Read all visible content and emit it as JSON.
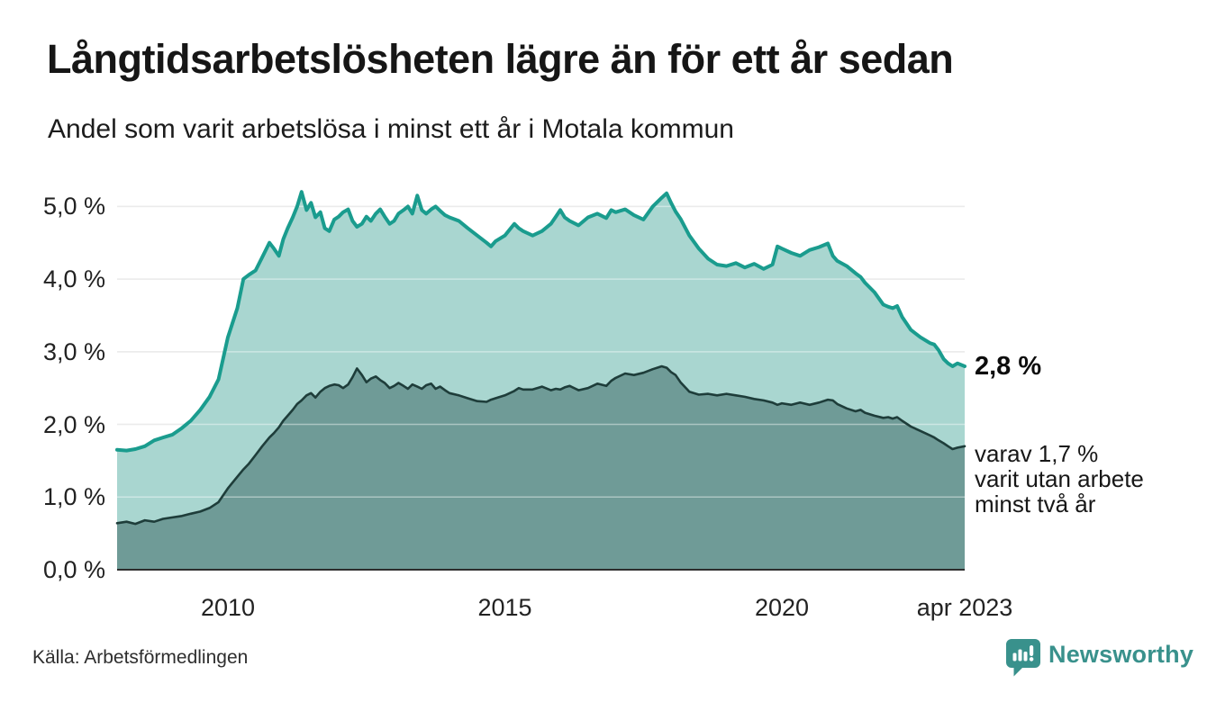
{
  "header": {
    "title": "Långtidsarbetslösheten lägre än för ett år sedan",
    "subtitle": "Andel som varit arbetslösa i minst ett år i Motala kommun"
  },
  "annotations": {
    "end_value_total": "2,8 %",
    "end_note_two_year": "varav 1,7 %\nvarit utan arbete\nminst två år"
  },
  "footer": {
    "source": "Källa: Arbetsförmedlingen",
    "brand": {
      "name": "Newsworthy",
      "icon": "bar-chart-speech-bubble-icon",
      "color": "#39918C"
    }
  },
  "chart_data": {
    "type": "area",
    "title": "Långtidsarbetslösheten lägre än för ett år sedan",
    "subtitle": "Andel som varit arbetslösa i minst ett år i Motala kommun",
    "xlabel": "",
    "ylabel": "",
    "unit": "%",
    "grid": "horizontal",
    "legend_position": "none",
    "xlim": [
      2008.0,
      2023.3
    ],
    "ylim": [
      0,
      5.24
    ],
    "yticks": [
      {
        "value": 0,
        "label": "0,0 %"
      },
      {
        "value": 1,
        "label": "1,0 %"
      },
      {
        "value": 2,
        "label": "2,0 %"
      },
      {
        "value": 3,
        "label": "3,0 %"
      },
      {
        "value": 4,
        "label": "4,0 %"
      },
      {
        "value": 5,
        "label": "5,0 %"
      }
    ],
    "xticks": [
      {
        "value": 2010,
        "label": "2010"
      },
      {
        "value": 2015,
        "label": "2015"
      },
      {
        "value": 2020,
        "label": "2020"
      },
      {
        "value": 2023.3,
        "label": "apr 2023"
      }
    ],
    "colors": {
      "gridline": "#DCDCDC",
      "gridline_overlay": "rgba(255,255,255,0.42)",
      "axis_line": "#2E2E2E"
    },
    "x": [
      2008.0,
      2008.17,
      2008.33,
      2008.5,
      2008.67,
      2008.83,
      2009.0,
      2009.17,
      2009.33,
      2009.5,
      2009.67,
      2009.83,
      2010.0,
      2010.17,
      2010.28,
      2010.38,
      2010.5,
      2010.62,
      2010.75,
      2010.83,
      2010.92,
      2011.0,
      2011.08,
      2011.17,
      2011.25,
      2011.33,
      2011.42,
      2011.5,
      2011.58,
      2011.67,
      2011.75,
      2011.83,
      2011.92,
      2012.0,
      2012.08,
      2012.17,
      2012.25,
      2012.33,
      2012.42,
      2012.5,
      2012.58,
      2012.67,
      2012.75,
      2012.83,
      2012.92,
      2013.0,
      2013.08,
      2013.17,
      2013.25,
      2013.33,
      2013.42,
      2013.5,
      2013.58,
      2013.67,
      2013.75,
      2013.83,
      2013.92,
      2014.0,
      2014.17,
      2014.33,
      2014.5,
      2014.67,
      2014.75,
      2014.83,
      2015.0,
      2015.17,
      2015.25,
      2015.33,
      2015.5,
      2015.67,
      2015.83,
      2015.92,
      2016.0,
      2016.08,
      2016.17,
      2016.33,
      2016.5,
      2016.67,
      2016.83,
      2016.92,
      2017.0,
      2017.17,
      2017.33,
      2017.5,
      2017.67,
      2017.83,
      2017.92,
      2018.0,
      2018.08,
      2018.17,
      2018.33,
      2018.5,
      2018.67,
      2018.83,
      2019.0,
      2019.17,
      2019.33,
      2019.5,
      2019.67,
      2019.83,
      2019.92,
      2020.0,
      2020.17,
      2020.33,
      2020.5,
      2020.67,
      2020.83,
      2020.92,
      2021.0,
      2021.17,
      2021.33,
      2021.42,
      2021.5,
      2021.67,
      2021.83,
      2021.92,
      2022.0,
      2022.08,
      2022.17,
      2022.33,
      2022.5,
      2022.67,
      2022.75,
      2022.83,
      2022.92,
      2023.0,
      2023.08,
      2023.17,
      2023.3
    ],
    "series": [
      {
        "name": "Andel arbetslösa minst ett år",
        "end_label": "2,8 %",
        "line_color": "#1A9C8E",
        "fill_color": "#A9D6D0",
        "line_width": 4,
        "values": [
          1.65,
          1.64,
          1.66,
          1.7,
          1.78,
          1.82,
          1.86,
          1.95,
          2.05,
          2.2,
          2.38,
          2.62,
          3.2,
          3.6,
          4.0,
          4.06,
          4.12,
          4.3,
          4.5,
          4.42,
          4.32,
          4.55,
          4.7,
          4.85,
          5.0,
          5.2,
          4.95,
          5.05,
          4.85,
          4.92,
          4.7,
          4.66,
          4.82,
          4.86,
          4.92,
          4.96,
          4.8,
          4.72,
          4.76,
          4.86,
          4.8,
          4.9,
          4.96,
          4.86,
          4.76,
          4.8,
          4.9,
          4.95,
          5.0,
          4.9,
          5.15,
          4.95,
          4.9,
          4.96,
          5.0,
          4.94,
          4.88,
          4.85,
          4.8,
          4.7,
          4.6,
          4.5,
          4.45,
          4.52,
          4.6,
          4.76,
          4.7,
          4.66,
          4.6,
          4.66,
          4.76,
          4.86,
          4.95,
          4.85,
          4.8,
          4.74,
          4.85,
          4.9,
          4.84,
          4.95,
          4.92,
          4.96,
          4.88,
          4.82,
          5.0,
          5.12,
          5.18,
          5.05,
          4.93,
          4.83,
          4.6,
          4.42,
          4.28,
          4.2,
          4.18,
          4.22,
          4.16,
          4.21,
          4.14,
          4.2,
          4.45,
          4.42,
          4.36,
          4.32,
          4.4,
          4.44,
          4.49,
          4.32,
          4.25,
          4.18,
          4.08,
          4.03,
          3.95,
          3.82,
          3.65,
          3.62,
          3.6,
          3.63,
          3.48,
          3.3,
          3.2,
          3.12,
          3.1,
          3.02,
          2.9,
          2.84,
          2.8,
          2.84,
          2.8
        ]
      },
      {
        "name": "varav arbetslösa minst två år",
        "end_label": "1,7 %",
        "line_color": "#1E3D3A",
        "fill_color": "#6F9B97",
        "line_width": 2.6,
        "values": [
          0.64,
          0.66,
          0.63,
          0.68,
          0.66,
          0.7,
          0.72,
          0.74,
          0.77,
          0.8,
          0.85,
          0.93,
          1.12,
          1.28,
          1.38,
          1.46,
          1.58,
          1.7,
          1.82,
          1.88,
          1.96,
          2.05,
          2.12,
          2.2,
          2.28,
          2.33,
          2.4,
          2.43,
          2.37,
          2.45,
          2.5,
          2.53,
          2.55,
          2.54,
          2.5,
          2.55,
          2.65,
          2.77,
          2.68,
          2.58,
          2.63,
          2.66,
          2.61,
          2.57,
          2.5,
          2.53,
          2.57,
          2.53,
          2.49,
          2.55,
          2.52,
          2.49,
          2.54,
          2.56,
          2.49,
          2.52,
          2.47,
          2.43,
          2.4,
          2.36,
          2.32,
          2.31,
          2.34,
          2.36,
          2.4,
          2.46,
          2.5,
          2.48,
          2.48,
          2.52,
          2.47,
          2.49,
          2.48,
          2.51,
          2.53,
          2.47,
          2.5,
          2.56,
          2.53,
          2.6,
          2.64,
          2.7,
          2.68,
          2.71,
          2.76,
          2.8,
          2.78,
          2.72,
          2.68,
          2.58,
          2.45,
          2.41,
          2.42,
          2.4,
          2.42,
          2.4,
          2.38,
          2.35,
          2.33,
          2.3,
          2.27,
          2.29,
          2.27,
          2.3,
          2.27,
          2.3,
          2.34,
          2.33,
          2.28,
          2.22,
          2.18,
          2.2,
          2.16,
          2.12,
          2.09,
          2.1,
          2.08,
          2.1,
          2.05,
          1.97,
          1.91,
          1.85,
          1.82,
          1.78,
          1.74,
          1.7,
          1.66,
          1.68,
          1.7
        ]
      }
    ]
  }
}
